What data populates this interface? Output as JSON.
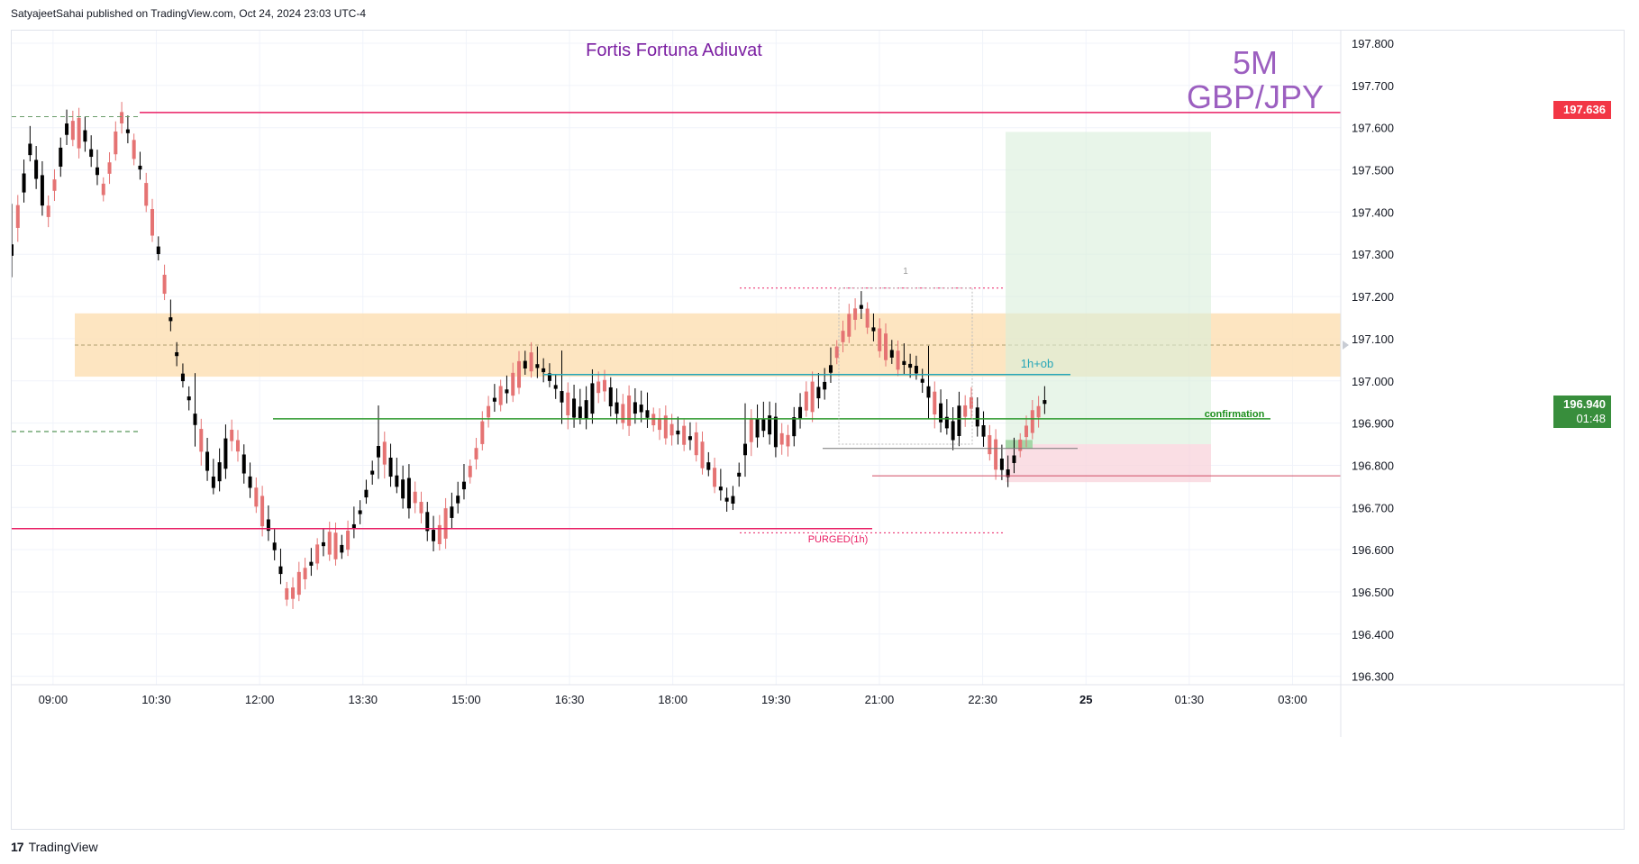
{
  "header": {
    "publisher_line": "SatyajeetSahai published on TradingView.com, Oct 24, 2024 23:03 UTC-4"
  },
  "footer": {
    "brand": "TradingView",
    "logo_glyph": "17"
  },
  "chart_data": {
    "type": "candlestick",
    "title": "Fortis Fortuna Adiuvat",
    "timeframe": "5M",
    "symbol": "GBP/JPY",
    "y_axis": {
      "ticks": [
        "197.800",
        "197.700",
        "197.600",
        "197.500",
        "197.400",
        "197.300",
        "197.200",
        "197.100",
        "197.000",
        "196.900",
        "196.800",
        "196.700",
        "196.600",
        "196.500",
        "196.400",
        "196.300"
      ],
      "range": [
        196.28,
        197.83
      ]
    },
    "x_axis": {
      "ticks": [
        "09:00",
        "10:30",
        "12:00",
        "13:30",
        "15:00",
        "16:30",
        "18:00",
        "19:30",
        "21:00",
        "22:30",
        "25",
        "01:30",
        "03:00"
      ],
      "bold_tick": "25",
      "range_hours": [
        8.4,
        27.7
      ],
      "tick_hours": [
        9,
        10.5,
        12,
        13.5,
        15,
        16.5,
        18,
        19.5,
        21,
        22.5,
        24,
        25.5,
        27
      ]
    },
    "last_price": {
      "value": "196.940",
      "countdown": "01:48",
      "color": "#4caf50"
    },
    "level_badge": {
      "value": "197.636",
      "color": "#f23645"
    },
    "colors": {
      "up": "#e57373",
      "down": "#000000",
      "grid": "#f0f3fa"
    },
    "annotations": {
      "purged": "PURGED(1h)",
      "ob": "1h+ob",
      "confirmation": "confirmation",
      "marker": "1"
    },
    "candles": [
      [
        196.9,
        197.0,
        196.82,
        196.87
      ],
      [
        196.87,
        196.95,
        196.84,
        196.93
      ],
      [
        196.93,
        196.96,
        196.86,
        196.88
      ],
      [
        196.88,
        196.92,
        196.84,
        196.85
      ],
      [
        196.85,
        196.88,
        196.78,
        196.8
      ],
      [
        196.8,
        196.83,
        196.7,
        196.72
      ],
      [
        196.72,
        196.77,
        196.7,
        196.75
      ],
      [
        196.75,
        196.8,
        196.73,
        196.78
      ],
      [
        196.78,
        196.8,
        196.71,
        196.73
      ],
      [
        196.73,
        196.76,
        196.68,
        196.7
      ],
      [
        196.7,
        196.77,
        196.69,
        196.75
      ],
      [
        196.75,
        196.85,
        196.73,
        196.83
      ],
      [
        196.83,
        196.86,
        196.78,
        196.8
      ],
      [
        196.8,
        196.83,
        196.76,
        196.78
      ],
      [
        196.78,
        196.82,
        196.74,
        196.76
      ],
      [
        196.76,
        196.8,
        196.75,
        196.79
      ],
      [
        196.79,
        196.84,
        196.77,
        196.82
      ],
      [
        196.82,
        196.9,
        196.81,
        196.88
      ],
      [
        196.88,
        196.93,
        196.86,
        196.91
      ],
      [
        196.91,
        196.94,
        196.88,
        196.9
      ],
      [
        196.9,
        196.96,
        196.89,
        196.95
      ],
      [
        196.95,
        196.98,
        196.92,
        196.94
      ],
      [
        196.94,
        197.02,
        196.93,
        197.0
      ],
      [
        196.96,
        197.05,
        196.95,
        197.03
      ],
      [
        197.03,
        197.05,
        197.0,
        197.01
      ],
      [
        197.01,
        197.08,
        197.0,
        197.06
      ],
      [
        197.06,
        197.1,
        197.03,
        197.05
      ],
      [
        197.05,
        197.07,
        197.02,
        197.04
      ],
      [
        197.04,
        197.06,
        197.01,
        197.02
      ],
      [
        197.02,
        197.04,
        196.99,
        197.01
      ]
    ]
  }
}
